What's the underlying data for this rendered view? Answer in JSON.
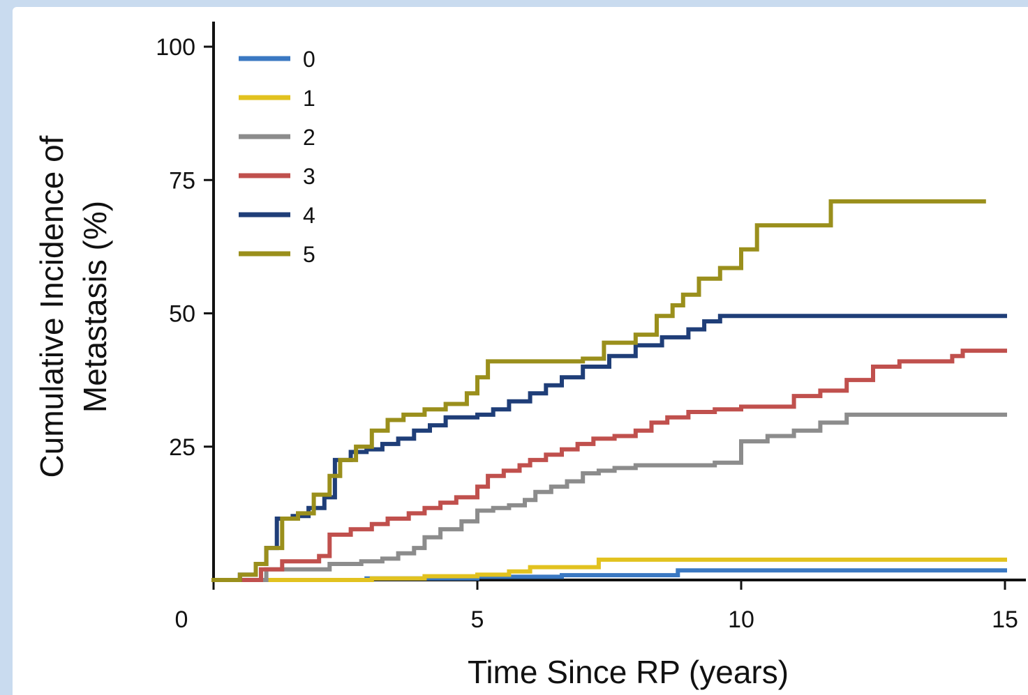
{
  "chart_data": {
    "type": "line",
    "title": "",
    "xlabel": "Time Since RP (years)",
    "ylabel_line1": "Cumulative Incidence of",
    "ylabel_line2": "Metastasis (%)",
    "xlim": [
      0,
      15
    ],
    "ylim": [
      0,
      100
    ],
    "xticks": [
      0,
      5,
      10,
      15
    ],
    "xtick_labels": [
      "0",
      "5",
      "10",
      "15"
    ],
    "yticks": [
      25,
      50,
      75,
      100
    ],
    "ytick_labels": [
      "25",
      "50",
      "75",
      "100"
    ],
    "grid": false,
    "legend_position": "top-left",
    "step": true,
    "series": [
      {
        "name": "0",
        "color": "#3a78c2",
        "x": [
          0,
          2.9,
          5.0,
          6.6,
          8.8,
          15.0
        ],
        "y": [
          0,
          0.3,
          0.6,
          0.9,
          1.8,
          1.8
        ]
      },
      {
        "name": "1",
        "color": "#e2c21f",
        "x": [
          0,
          3.0,
          4.0,
          5.0,
          5.6,
          6.0,
          7.3,
          15.0
        ],
        "y": [
          0,
          0.3,
          0.7,
          1.0,
          1.6,
          2.4,
          3.8,
          3.8
        ]
      },
      {
        "name": "2",
        "color": "#8c8c8c",
        "x": [
          0,
          1.0,
          2.2,
          2.8,
          3.2,
          3.5,
          3.8,
          4.0,
          4.3,
          4.7,
          5.0,
          5.3,
          5.6,
          5.9,
          6.1,
          6.4,
          6.7,
          7.0,
          7.3,
          7.6,
          8.0,
          9.5,
          10.0,
          10.5,
          11.0,
          11.5,
          12.0,
          13.0,
          15.0
        ],
        "y": [
          0,
          2.0,
          3.0,
          3.5,
          4.0,
          5.0,
          6.0,
          8.0,
          9.5,
          11.0,
          13.0,
          13.5,
          14.0,
          15.0,
          16.5,
          17.5,
          18.5,
          20.0,
          20.5,
          21.0,
          21.5,
          22.0,
          26.0,
          27.0,
          28.0,
          29.5,
          31.0,
          31.0,
          31.0
        ]
      },
      {
        "name": "3",
        "color": "#c0504d",
        "x": [
          0,
          0.9,
          1.3,
          2.0,
          2.2,
          2.6,
          3.0,
          3.3,
          3.7,
          4.0,
          4.3,
          4.6,
          5.0,
          5.2,
          5.5,
          5.8,
          6.0,
          6.3,
          6.6,
          6.9,
          7.2,
          7.6,
          8.0,
          8.3,
          8.6,
          9.0,
          9.5,
          10.0,
          11.0,
          11.5,
          12.0,
          12.5,
          13.0,
          14.0,
          14.2,
          15.0
        ],
        "y": [
          0,
          2.0,
          3.5,
          4.5,
          8.5,
          9.5,
          10.5,
          11.5,
          12.5,
          13.5,
          14.5,
          15.5,
          17.5,
          19.5,
          20.5,
          21.5,
          22.5,
          23.5,
          24.5,
          25.5,
          26.5,
          27.0,
          28.0,
          29.5,
          30.5,
          31.5,
          32.0,
          32.5,
          34.5,
          35.5,
          37.5,
          40.0,
          41.0,
          42.0,
          43.0,
          43.0
        ]
      },
      {
        "name": "4",
        "color": "#1f3e78",
        "x": [
          0,
          0.5,
          0.8,
          1.0,
          1.2,
          1.5,
          1.8,
          2.1,
          2.3,
          2.6,
          2.9,
          3.2,
          3.5,
          3.8,
          4.1,
          4.4,
          5.0,
          5.3,
          5.6,
          6.0,
          6.3,
          6.6,
          7.0,
          7.5,
          8.0,
          8.5,
          9.0,
          9.3,
          9.6,
          15.0
        ],
        "y": [
          0,
          1.0,
          3.0,
          6.0,
          11.5,
          12.0,
          13.5,
          15.5,
          22.5,
          24.0,
          24.5,
          25.5,
          26.5,
          28.0,
          29.0,
          30.5,
          31.0,
          32.0,
          33.5,
          35.0,
          36.5,
          38.0,
          40.0,
          42.0,
          44.0,
          45.5,
          47.0,
          48.5,
          49.5,
          49.5
        ]
      },
      {
        "name": "5",
        "color": "#9a8f1c",
        "x": [
          0,
          0.5,
          0.8,
          1.0,
          1.3,
          1.6,
          1.9,
          2.2,
          2.4,
          2.7,
          3.0,
          3.3,
          3.6,
          4.0,
          4.4,
          4.8,
          5.0,
          5.2,
          7.0,
          7.4,
          8.0,
          8.4,
          8.7,
          8.9,
          9.2,
          9.6,
          10.0,
          10.3,
          11.7,
          14.6
        ],
        "y": [
          0,
          1.0,
          3.0,
          6.0,
          11.5,
          12.5,
          16.0,
          19.5,
          22.5,
          25.0,
          28.0,
          30.0,
          31.0,
          32.0,
          33.0,
          35.0,
          38.0,
          41.0,
          41.5,
          44.5,
          46.0,
          49.5,
          51.5,
          53.5,
          56.5,
          58.5,
          62.0,
          66.5,
          71.0,
          71.0
        ]
      }
    ]
  }
}
